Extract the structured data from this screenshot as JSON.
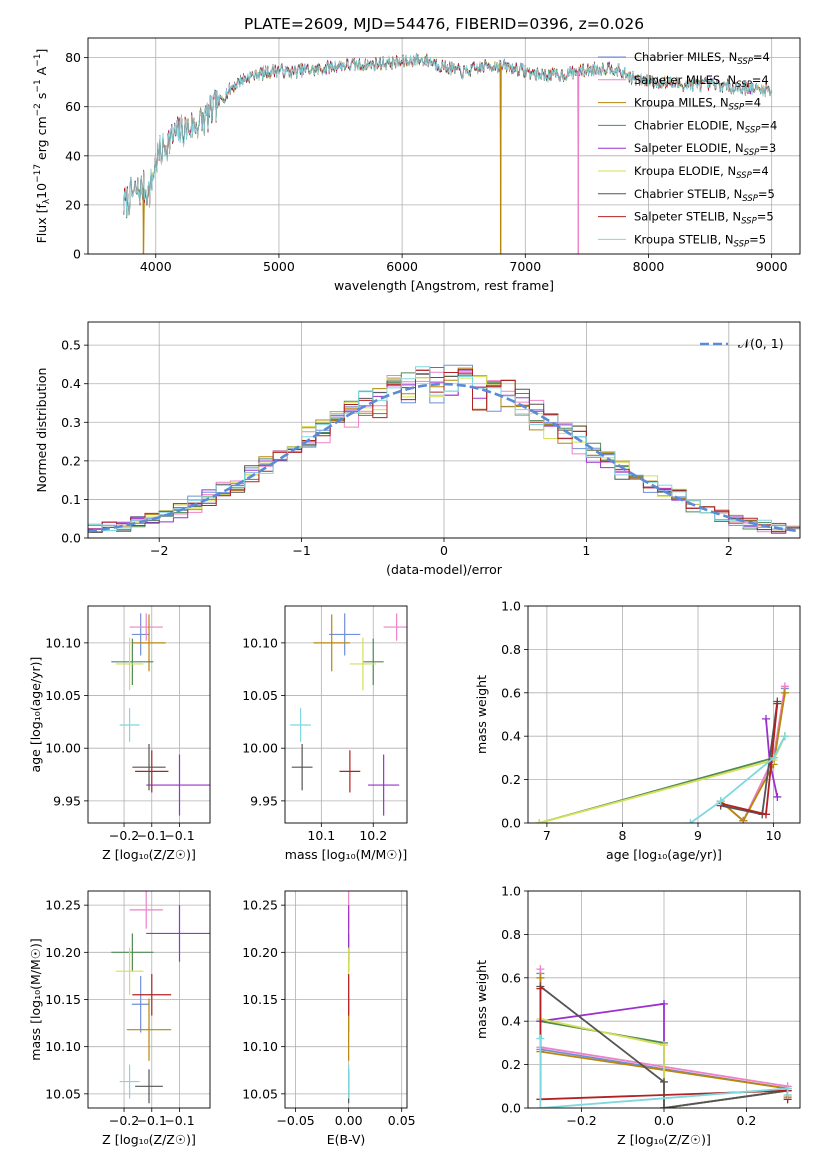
{
  "figure": {
    "title": "PLATE=2609, MJD=54476, FIBERID=0396, z=0.026"
  },
  "models": [
    {
      "label": "Chabrier MILES, N",
      "sub": "SSP",
      "eq": "=4",
      "color": "#6f8fd8"
    },
    {
      "label": "Salpeter MILES, N",
      "sub": "SSP",
      "eq": "=4",
      "color": "#ee82c8"
    },
    {
      "label": "Kroupa MILES, N",
      "sub": "SSP",
      "eq": "=4",
      "color": "#b8860b"
    },
    {
      "label": "Chabrier ELODIE, N",
      "sub": "SSP",
      "eq": "=4",
      "color": "#4f8a55"
    },
    {
      "label": "Salpeter ELODIE, N",
      "sub": "SSP",
      "eq": "=3",
      "color": "#9932cc"
    },
    {
      "label": "Kroupa ELODIE, N",
      "sub": "SSP",
      "eq": "=4",
      "color": "#d4e157"
    },
    {
      "label": "Chabrier STELIB, N",
      "sub": "SSP",
      "eq": "=5",
      "color": "#555555"
    },
    {
      "label": "Salpeter STELIB, N",
      "sub": "SSP",
      "eq": "=5",
      "color": "#b22222"
    },
    {
      "label": "Kroupa STELIB, N",
      "sub": "SSP",
      "eq": "=5",
      "color": "#7fd8e0"
    }
  ],
  "chart_data": [
    {
      "id": "spectrum",
      "type": "line",
      "xlabel": "wavelength [Angstrom, rest frame]",
      "ylabel": "Flux [f",
      "ylabel_parts": [
        "Flux [f",
        "λ",
        "10",
        "−17",
        " erg cm",
        "−2",
        " s",
        "−1",
        " A",
        "−1",
        "]"
      ],
      "xlim": [
        3450,
        9230
      ],
      "ylim": [
        0,
        88
      ],
      "xticks": [
        4000,
        5000,
        6000,
        7000,
        8000,
        9000
      ],
      "yticks": [
        0,
        20,
        40,
        60,
        80
      ],
      "continuum": {
        "x": [
          3740,
          3800,
          3900,
          3950,
          4000,
          4100,
          4200,
          4300,
          4400,
          4500,
          4600,
          4700,
          4800,
          4900,
          5000,
          5100,
          5200,
          5300,
          5500,
          5700,
          5900,
          6000,
          6100,
          6200,
          6300,
          6500,
          6700,
          6900,
          7100,
          7300,
          7500,
          7700,
          7900,
          8100,
          8300,
          8500,
          8700,
          8900,
          9000
        ],
        "y": [
          20,
          24,
          27,
          25,
          38,
          46,
          50,
          52,
          55,
          61,
          67,
          71,
          73,
          74,
          75,
          74,
          75,
          75,
          77,
          77,
          78,
          78,
          79,
          79,
          77,
          74,
          77,
          76,
          73,
          73,
          75,
          76,
          71,
          70,
          69,
          69,
          68,
          67,
          67
        ]
      },
      "drops": [
        {
          "series": 2,
          "x": 3900,
          "to": 0
        },
        {
          "series": 2,
          "x": 6800,
          "to": 0
        },
        {
          "series": 1,
          "x": 7430,
          "to": 0
        }
      ]
    },
    {
      "id": "residuals",
      "type": "histogram",
      "xlabel": "(data-model)/error",
      "ylabel": "Normed distribution",
      "xlim": [
        -2.5,
        2.5
      ],
      "ylim": [
        0,
        0.56
      ],
      "xticks": [
        -2,
        -1,
        0,
        1,
        2
      ],
      "yticks": [
        0.0,
        0.1,
        0.2,
        0.3,
        0.4,
        0.5
      ],
      "bin_width": 0.1,
      "reference": {
        "name": "𝒩(0, 1)",
        "mean": 0,
        "sigma": 1
      }
    },
    {
      "id": "age-vs-z",
      "type": "errorbar",
      "xlabel": "Z [log₁₀(Z/Z☉)]",
      "ylabel": "age  [log₁₀(age/yr)]",
      "xlim": [
        -0.265,
        -0.045
      ],
      "ylim": [
        9.929,
        10.135
      ],
      "xticks": [
        -0.2,
        -0.15,
        -0.1
      ],
      "yticks": [
        9.95,
        10.0,
        10.05,
        10.1
      ],
      "points": [
        {
          "x": -0.17,
          "y": 10.108,
          "xerr": 0.016,
          "yerr": 0.02
        },
        {
          "x": -0.16,
          "y": 10.115,
          "xerr": 0.03,
          "yerr": 0.013
        },
        {
          "x": -0.155,
          "y": 10.1,
          "xerr": 0.03,
          "yerr": 0.027
        },
        {
          "x": -0.185,
          "y": 10.082,
          "xerr": 0.038,
          "yerr": 0.022
        },
        {
          "x": -0.1,
          "y": 9.965,
          "xerr": 0.06,
          "yerr": 0.029
        },
        {
          "x": -0.19,
          "y": 10.08,
          "xerr": 0.025,
          "yerr": 0.025
        },
        {
          "x": -0.155,
          "y": 9.982,
          "xerr": 0.03,
          "yerr": 0.022
        },
        {
          "x": -0.15,
          "y": 9.978,
          "xerr": 0.03,
          "yerr": 0.02
        },
        {
          "x": -0.19,
          "y": 10.022,
          "xerr": 0.018,
          "yerr": 0.016
        }
      ]
    },
    {
      "id": "age-vs-mass",
      "type": "errorbar",
      "xlabel": "mass [log₁₀(M/M☉)]",
      "ylabel": "",
      "xlim": [
        10.03,
        10.265
      ],
      "ylim": [
        9.929,
        10.135
      ],
      "xticks": [
        10.1,
        10.2
      ],
      "yticks": [
        9.95,
        10.0,
        10.05,
        10.1
      ],
      "points": [
        {
          "x": 10.145,
          "y": 10.108,
          "xerr": 0.03,
          "yerr": 0.02
        },
        {
          "x": 10.245,
          "y": 10.115,
          "xerr": 0.025,
          "yerr": 0.013
        },
        {
          "x": 10.12,
          "y": 10.1,
          "xerr": 0.035,
          "yerr": 0.027
        },
        {
          "x": 10.2,
          "y": 10.082,
          "xerr": 0.02,
          "yerr": 0.022
        },
        {
          "x": 10.22,
          "y": 9.965,
          "xerr": 0.03,
          "yerr": 0.029
        },
        {
          "x": 10.18,
          "y": 10.08,
          "xerr": 0.025,
          "yerr": 0.025
        },
        {
          "x": 10.063,
          "y": 9.982,
          "xerr": 0.02,
          "yerr": 0.022
        },
        {
          "x": 10.155,
          "y": 9.978,
          "xerr": 0.02,
          "yerr": 0.02
        },
        {
          "x": 10.06,
          "y": 10.022,
          "xerr": 0.02,
          "yerr": 0.016
        }
      ]
    },
    {
      "id": "mass-weight-vs-age",
      "type": "line",
      "xlabel": "age  [log₁₀(age/yr)]",
      "ylabel": "mass weight",
      "xlim": [
        6.75,
        10.35
      ],
      "ylim": [
        0,
        1.0
      ],
      "xticks": [
        7,
        8,
        9,
        10
      ],
      "yticks": [
        0.0,
        0.2,
        0.4,
        0.6,
        0.8,
        1.0
      ],
      "series": [
        {
          "x": [
            9.3,
            9.6,
            10.0,
            10.15
          ],
          "y": [
            0.1,
            0.01,
            0.3,
            0.62
          ]
        },
        {
          "x": [
            9.3,
            9.6,
            10.0,
            10.15
          ],
          "y": [
            0.1,
            0.01,
            0.3,
            0.63
          ]
        },
        {
          "x": [
            9.3,
            9.6,
            10.0,
            10.15
          ],
          "y": [
            0.1,
            0.01,
            0.27,
            0.6
          ]
        },
        {
          "x": [
            6.9,
            10.0,
            10.15
          ],
          "y": [
            0.0,
            0.3,
            0.4
          ]
        },
        {
          "x": [
            9.9,
            9.95,
            10.05
          ],
          "y": [
            0.48,
            0.28,
            0.12
          ]
        },
        {
          "x": [
            6.9,
            10.0,
            10.15
          ],
          "y": [
            0.0,
            0.29,
            0.4
          ]
        },
        {
          "x": [
            9.3,
            9.85,
            10.05
          ],
          "y": [
            0.08,
            0.04,
            0.56
          ]
        },
        {
          "x": [
            9.3,
            9.9,
            10.05
          ],
          "y": [
            0.09,
            0.04,
            0.55
          ]
        },
        {
          "x": [
            8.9,
            9.3,
            10.0,
            10.15
          ],
          "y": [
            0.0,
            0.1,
            0.3,
            0.4
          ]
        }
      ]
    },
    {
      "id": "mass-vs-z",
      "type": "errorbar",
      "xlabel": "Z [log₁₀(Z/Z☉)]",
      "ylabel": "mass [log₁₀(M/M☉)]",
      "xlim": [
        -0.265,
        -0.045
      ],
      "ylim": [
        10.035,
        10.265
      ],
      "xticks": [
        -0.2,
        -0.15,
        -0.1
      ],
      "yticks": [
        10.05,
        10.1,
        10.15,
        10.2,
        10.25
      ],
      "points": [
        {
          "x": -0.17,
          "y": 10.145,
          "xerr": 0.016,
          "yerr": 0.03
        },
        {
          "x": -0.16,
          "y": 10.245,
          "xerr": 0.03,
          "yerr": 0.02
        },
        {
          "x": -0.155,
          "y": 10.118,
          "xerr": 0.04,
          "yerr": 0.033
        },
        {
          "x": -0.185,
          "y": 10.2,
          "xerr": 0.038,
          "yerr": 0.02
        },
        {
          "x": -0.1,
          "y": 10.22,
          "xerr": 0.06,
          "yerr": 0.03
        },
        {
          "x": -0.19,
          "y": 10.18,
          "xerr": 0.025,
          "yerr": 0.025
        },
        {
          "x": -0.155,
          "y": 10.058,
          "xerr": 0.025,
          "yerr": 0.018
        },
        {
          "x": -0.15,
          "y": 10.155,
          "xerr": 0.035,
          "yerr": 0.022
        },
        {
          "x": -0.19,
          "y": 10.063,
          "xerr": 0.018,
          "yerr": 0.018
        }
      ]
    },
    {
      "id": "mass-vs-ebv",
      "type": "errorbar",
      "xlabel": "E(B-V)",
      "ylabel": "",
      "xlim": [
        -0.06,
        0.055
      ],
      "ylim": [
        10.035,
        10.265
      ],
      "xticks": [
        -0.05,
        0.0,
        0.05
      ],
      "yticks": [
        10.05,
        10.1,
        10.15,
        10.2,
        10.25
      ],
      "points": [
        {
          "x": 0,
          "y": 10.145,
          "xerr": 0,
          "yerr": 0.03
        },
        {
          "x": 0,
          "y": 10.245,
          "xerr": 0,
          "yerr": 0.02
        },
        {
          "x": 0,
          "y": 10.118,
          "xerr": 0,
          "yerr": 0.033
        },
        {
          "x": 0,
          "y": 10.2,
          "xerr": 0,
          "yerr": 0.02
        },
        {
          "x": 0,
          "y": 10.22,
          "xerr": 0,
          "yerr": 0.03
        },
        {
          "x": 0,
          "y": 10.18,
          "xerr": 0,
          "yerr": 0.025
        },
        {
          "x": 0,
          "y": 10.058,
          "xerr": 0,
          "yerr": 0.018
        },
        {
          "x": 0,
          "y": 10.155,
          "xerr": 0,
          "yerr": 0.022
        },
        {
          "x": 0,
          "y": 10.063,
          "xerr": 0,
          "yerr": 0.018
        }
      ]
    },
    {
      "id": "mass-weight-vs-z",
      "type": "line",
      "xlabel": "Z [log₁₀(Z/Z☉)]",
      "ylabel": "mass weight",
      "xlim": [
        -0.33,
        0.33
      ],
      "ylim": [
        0,
        1.0
      ],
      "xticks": [
        -0.2,
        0.0,
        0.2
      ],
      "yticks": [
        0.0,
        0.2,
        0.4,
        0.6,
        0.8,
        1.0
      ],
      "series": [
        {
          "x": [
            -0.3,
            -0.3,
            0.3,
            0.3
          ],
          "y": [
            0.62,
            0.27,
            0.09,
            0.05
          ]
        },
        {
          "x": [
            -0.3,
            -0.3,
            0.3,
            0.3
          ],
          "y": [
            0.64,
            0.28,
            0.1,
            0.06
          ]
        },
        {
          "x": [
            -0.3,
            -0.3,
            0.3,
            0.3
          ],
          "y": [
            0.6,
            0.26,
            0.09,
            0.05
          ]
        },
        {
          "x": [
            -0.3,
            0.0,
            0.0,
            0.3
          ],
          "y": [
            0.4,
            0.3,
            0.0,
            0.08
          ]
        },
        {
          "x": [
            -0.3,
            0.0,
            0.0,
            0.3
          ],
          "y": [
            0.4,
            0.48,
            0.0,
            0.08
          ]
        },
        {
          "x": [
            -0.3,
            0.0,
            0.0,
            0.3
          ],
          "y": [
            0.41,
            0.29,
            0.0,
            0.08
          ]
        },
        {
          "x": [
            -0.3,
            0.0,
            0.0,
            0.3
          ],
          "y": [
            0.56,
            0.12,
            0.0,
            0.08
          ]
        },
        {
          "x": [
            -0.3,
            -0.3,
            0.3,
            0.3
          ],
          "y": [
            0.55,
            0.04,
            0.08,
            0.04
          ]
        },
        {
          "x": [
            -0.3,
            -0.3,
            0.3,
            0.3
          ],
          "y": [
            0.32,
            0.0,
            0.09,
            0.06
          ]
        }
      ]
    }
  ]
}
